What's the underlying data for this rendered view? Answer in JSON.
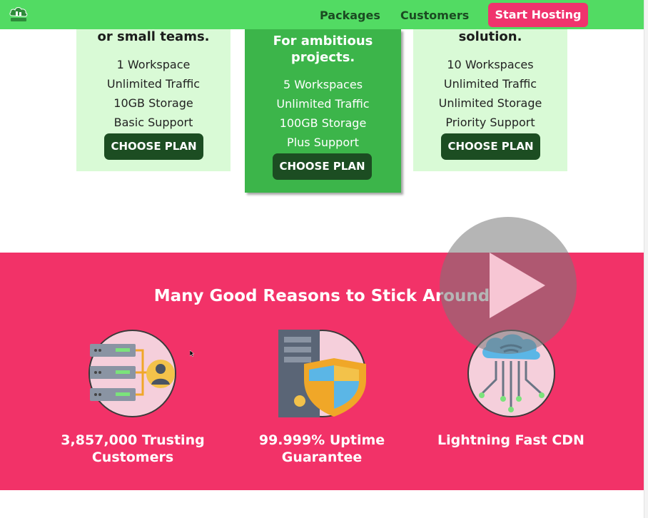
{
  "nav": {
    "links": [
      "Packages",
      "Customers"
    ],
    "cta_label": "Start Hosting",
    "logo_icon": "hosting-logo-icon"
  },
  "plans": [
    {
      "title": "or small teams.",
      "features": [
        "1 Workspace",
        "Unlimited Traffic",
        "10GB Storage",
        "Basic Support"
      ],
      "button": "CHOOSE PLAN"
    },
    {
      "title_lines": [
        "For ambitious",
        "projects."
      ],
      "features": [
        "5 Workspaces",
        "Unlimited Traffic",
        "100GB Storage",
        "Plus Support"
      ],
      "button": "CHOOSE PLAN",
      "highlighted": true
    },
    {
      "title": "solution.",
      "features": [
        "10 Workspaces",
        "Unlimited Traffic",
        "Unlimited Storage",
        "Priority Support"
      ],
      "button": "CHOOSE PLAN"
    }
  ],
  "reasons": {
    "title": "Many Good Reasons to Stick Around",
    "items": [
      {
        "icon": "server-users-icon",
        "label_lines": [
          "3,857,000 Trusting",
          "Customers"
        ]
      },
      {
        "icon": "server-shield-icon",
        "label_lines": [
          "99.999% Uptime",
          "Guarantee"
        ]
      },
      {
        "icon": "cloud-cdn-icon",
        "label_lines": [
          "Lightning Fast CDN"
        ]
      }
    ]
  },
  "overlay": {
    "icon": "play-icon"
  },
  "colors": {
    "nav_bg": "#52db63",
    "cta_bg": "#f0336d",
    "plan_bg": "#d9fad6",
    "plan_featured_bg": "#3cb54a",
    "button_bg": "#1c4d22",
    "reasons_bg": "#f23268"
  }
}
